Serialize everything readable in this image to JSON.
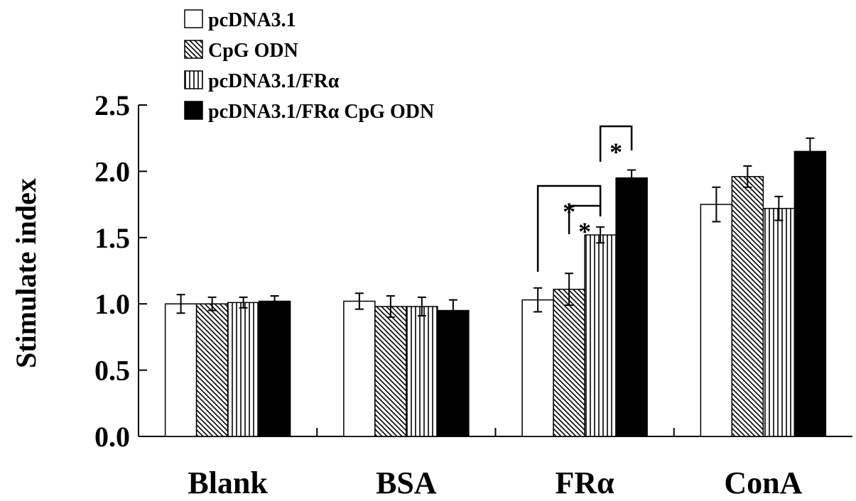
{
  "colors": {
    "axis": "#000000",
    "bar_outline": "#000000",
    "background": "#ffffff"
  },
  "chart_data": {
    "type": "bar",
    "title": "",
    "xlabel": "",
    "ylabel": "Stimulate index",
    "ylim": [
      0,
      2.5
    ],
    "yticks": [
      "0.0",
      "0.5",
      "1.0",
      "1.5",
      "2.0",
      "2.5"
    ],
    "categories": [
      "Blank",
      "BSA",
      "FRα",
      "ConA"
    ],
    "legend_position": "top-left",
    "grid": false,
    "series": [
      {
        "name": "pcDNA3.1",
        "pattern": "white",
        "values": [
          1.0,
          1.02,
          1.03,
          1.75
        ],
        "errors": [
          0.07,
          0.06,
          0.09,
          0.13
        ]
      },
      {
        "name": "CpG ODN",
        "pattern": "diagonal-hatch",
        "values": [
          1.0,
          0.98,
          1.11,
          1.96
        ],
        "errors": [
          0.05,
          0.08,
          0.12,
          0.08
        ]
      },
      {
        "name": "pcDNA3.1/FRα",
        "pattern": "vertical-stripes",
        "values": [
          1.01,
          0.98,
          1.52,
          1.72
        ],
        "errors": [
          0.04,
          0.07,
          0.06,
          0.09
        ]
      },
      {
        "name": "pcDNA3.1/FRα CpG ODN",
        "pattern": "black",
        "values": [
          1.02,
          0.95,
          1.95,
          2.15
        ],
        "errors": [
          0.04,
          0.08,
          0.06,
          0.1
        ]
      }
    ],
    "annotations": [
      {
        "text": "*",
        "category": "FRα",
        "from_series": 0,
        "to_series": 2
      },
      {
        "text": "*",
        "category": "FRα",
        "from_series": 1,
        "to_series": 2
      },
      {
        "text": "*",
        "category": "FRα",
        "from_series": 2,
        "to_series": 3
      }
    ]
  }
}
